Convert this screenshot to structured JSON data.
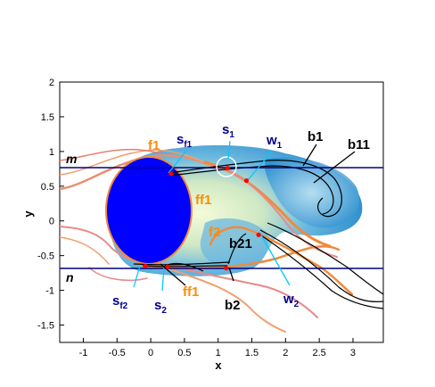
{
  "chart_data": {
    "type": "scatter",
    "xlabel": "x",
    "ylabel": "y",
    "xlim": [
      -1.35,
      3.45
    ],
    "ylim": [
      -1.75,
      2.0
    ],
    "xticks": [
      "-1",
      "-0.5",
      "0",
      "0.5",
      "1",
      "1.5",
      "2",
      "2.5",
      "3"
    ],
    "yticks": [
      "2",
      "1.5",
      "1",
      "0.5",
      "0",
      "-0.5",
      "-1",
      "-1.5"
    ],
    "reference_lines": [
      {
        "name": "m",
        "y": 0.75,
        "color": "#000080"
      },
      {
        "name": "n",
        "y": -0.72,
        "color": "#000080"
      }
    ],
    "cylinder": {
      "center": [
        0.2,
        0.15
      ],
      "rx": 0.62,
      "ry": 0.6,
      "color": "#0000ff"
    },
    "points": [
      {
        "name": "s_f1",
        "x": 0.3,
        "y": 0.68
      },
      {
        "name": "s_1",
        "x": 1.14,
        "y": 0.76
      },
      {
        "name": "w_1",
        "x": 1.42,
        "y": 0.58
      },
      {
        "name": "s_f2",
        "x": -0.08,
        "y": -0.65
      },
      {
        "name": "s_2",
        "x": 0.25,
        "y": -0.66
      },
      {
        "name": "b2",
        "x": 1.12,
        "y": -0.68
      },
      {
        "name": "w_2",
        "x": 1.6,
        "y": -0.2
      }
    ],
    "annotations": [
      {
        "label": "f1",
        "color": "#ff8c00"
      },
      {
        "label": "ff1",
        "color": "#ff8c00"
      },
      {
        "label": "f2",
        "color": "#ff8c00"
      },
      {
        "label": "ff1",
        "color": "#ff8c00"
      },
      {
        "label": "b1",
        "color": "#000000"
      },
      {
        "label": "b11",
        "color": "#000000"
      },
      {
        "label": "b21",
        "color": "#000000"
      },
      {
        "label": "b2",
        "color": "#000000"
      },
      {
        "label": "s",
        "sub": "f1",
        "color": "#00008b"
      },
      {
        "label": "s",
        "sub": "1",
        "color": "#00008b"
      },
      {
        "label": "w",
        "sub": "1",
        "color": "#00008b"
      },
      {
        "label": "s",
        "sub": "f2",
        "color": "#00008b"
      },
      {
        "label": "s",
        "sub": "2",
        "color": "#00008b"
      },
      {
        "label": "w",
        "sub": "2",
        "color": "#00008b"
      }
    ],
    "colors": {
      "cylinder": "#0000ff",
      "vortex_dark": "#2c8fd0",
      "vortex_light": "#eef7c8",
      "streak_orange": "#f08a3c",
      "streak_pink": "#e88a8a",
      "streak_black": "#000000",
      "leader_cyan": "#00c8ff",
      "label_navy": "#00008b",
      "label_orange": "#ff8c00",
      "marker_red": "#ff0000"
    }
  }
}
